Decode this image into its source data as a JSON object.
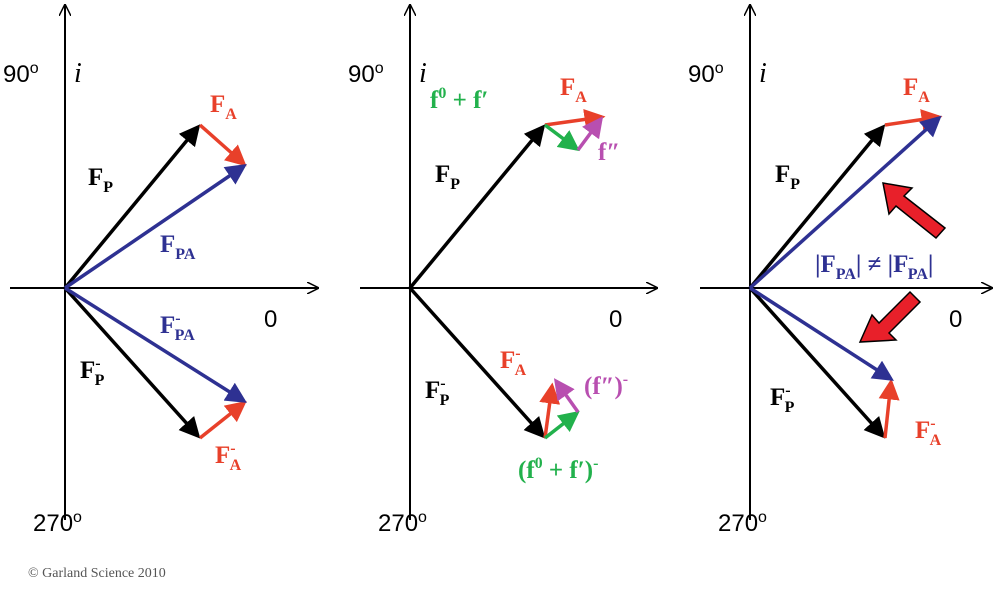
{
  "panels": [
    {
      "axis": {
        "top": "90",
        "top_sup": "o",
        "imag": "i",
        "right": "0",
        "bottom": "270",
        "bottom_sup": "o"
      },
      "labels": [
        {
          "segs": [
            {
              "text": "F"
            },
            {
              "sub": "A"
            }
          ]
        },
        {
          "segs": [
            {
              "text": "F"
            },
            {
              "sub": "P"
            }
          ]
        },
        {
          "segs": [
            {
              "text": "F"
            },
            {
              "sub": "PA"
            }
          ]
        },
        {
          "segs": [
            {
              "text": "F"
            },
            {
              "sup": "-"
            },
            {
              "sub": "PA"
            }
          ]
        },
        {
          "segs": [
            {
              "text": "F"
            },
            {
              "sup": "-"
            },
            {
              "sub": "P"
            }
          ]
        },
        {
          "segs": [
            {
              "text": "F"
            },
            {
              "sup": "-"
            },
            {
              "sub": "A"
            }
          ]
        }
      ]
    },
    {
      "axis": {
        "top": "90",
        "top_sup": "o",
        "imag": "i",
        "right": "0",
        "bottom": "270",
        "bottom_sup": "o"
      },
      "labels": [
        {
          "segs": [
            {
              "text": "f"
            },
            {
              "sup": "0"
            },
            {
              "text": " + f′"
            }
          ]
        },
        {
          "segs": [
            {
              "text": "F"
            },
            {
              "sub": "A"
            }
          ]
        },
        {
          "segs": [
            {
              "text": "f″"
            }
          ]
        },
        {
          "segs": [
            {
              "text": "F"
            },
            {
              "sub": "P"
            }
          ]
        },
        {
          "segs": [
            {
              "text": "F"
            },
            {
              "sup": "-"
            },
            {
              "sub": "A"
            }
          ]
        },
        {
          "segs": [
            {
              "text": "(f″)"
            },
            {
              "sup": "-"
            }
          ]
        },
        {
          "segs": [
            {
              "text": "F"
            },
            {
              "sup": "-"
            },
            {
              "sub": "P"
            }
          ]
        },
        {
          "segs": [
            {
              "text": "(f"
            },
            {
              "sup": "0"
            },
            {
              "text": " + f′)"
            },
            {
              "sup": "-"
            }
          ]
        }
      ]
    },
    {
      "axis": {
        "top": "90",
        "top_sup": "o",
        "imag": "i",
        "right": "0",
        "bottom": "270",
        "bottom_sup": "o"
      },
      "labels": [
        {
          "segs": [
            {
              "text": "F"
            },
            {
              "sub": "A"
            }
          ]
        },
        {
          "segs": [
            {
              "text": "F"
            },
            {
              "sub": "P"
            }
          ]
        },
        {
          "segs": [
            {
              "text": "|F"
            },
            {
              "sub": "PA"
            },
            {
              "text": "| ≠ |F"
            },
            {
              "sup": "-"
            },
            {
              "sub": "PA"
            },
            {
              "text": "|"
            }
          ]
        },
        {
          "segs": [
            {
              "text": "F"
            },
            {
              "sup": "-"
            },
            {
              "sub": "P"
            }
          ]
        },
        {
          "segs": [
            {
              "text": "F"
            },
            {
              "sup": "-"
            },
            {
              "sub": "A"
            }
          ]
        }
      ]
    }
  ],
  "footer": "© Garland Science 2010"
}
